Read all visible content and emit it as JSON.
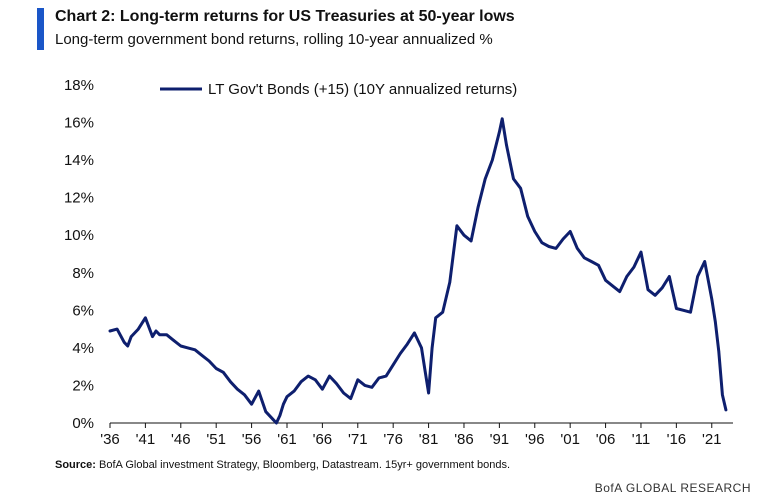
{
  "header": {
    "title": "Chart 2: Long-term returns for US Treasuries at 50-year lows",
    "subtitle": "Long-term government bond returns, rolling 10-year annualized %"
  },
  "footer": {
    "source_label": "Source:",
    "source_text": "BofA Global investment Strategy, Bloomberg, Datastream. 15yr+ government bonds.",
    "brand": "BofA GLOBAL RESEARCH"
  },
  "colors": {
    "accent": "#1a56c8",
    "series": "#0e1f6e",
    "axis": "#111111"
  },
  "chart_data": {
    "type": "line",
    "xlabel": "",
    "ylabel": "",
    "xlim": [
      1936,
      2024
    ],
    "ylim": [
      0,
      18
    ],
    "grid": false,
    "legend_position": "top-center",
    "x_tick_labels": [
      "'36",
      "'41",
      "'46",
      "'51",
      "'56",
      "'61",
      "'66",
      "'71",
      "'76",
      "'81",
      "'86",
      "'91",
      "'96",
      "'01",
      "'06",
      "'11",
      "'16",
      "'21"
    ],
    "x_tick_years": [
      1936,
      1941,
      1946,
      1951,
      1956,
      1961,
      1966,
      1971,
      1976,
      1981,
      1986,
      1991,
      1996,
      2001,
      2006,
      2011,
      2016,
      2021
    ],
    "y_tick_labels": [
      "0%",
      "2%",
      "4%",
      "6%",
      "8%",
      "10%",
      "12%",
      "14%",
      "16%",
      "18%"
    ],
    "y_ticks": [
      0,
      2,
      4,
      6,
      8,
      10,
      12,
      14,
      16,
      18
    ],
    "series": [
      {
        "name": "LT Gov't Bonds (+15) (10Y annualized returns)",
        "x": [
          1936,
          1937,
          1938,
          1938.5,
          1939,
          1940,
          1941,
          1942,
          1942.5,
          1943,
          1944,
          1945,
          1946,
          1947,
          1948,
          1949,
          1950,
          1951,
          1952,
          1953,
          1954,
          1955,
          1956,
          1957,
          1958,
          1959,
          1959.5,
          1960,
          1960.5,
          1961,
          1962,
          1963,
          1964,
          1965,
          1966,
          1967,
          1968,
          1969,
          1970,
          1971,
          1972,
          1973,
          1974,
          1975,
          1976,
          1977,
          1978,
          1979,
          1980,
          1980.5,
          1981,
          1981.5,
          1982,
          1983,
          1984,
          1985,
          1986,
          1987,
          1988,
          1989,
          1990,
          1991,
          1991.4,
          1992,
          1993,
          1994,
          1995,
          1996,
          1997,
          1998,
          1999,
          2000,
          2001,
          2002,
          2003,
          2004,
          2005,
          2006,
          2007,
          2008,
          2009,
          2010,
          2011,
          2012,
          2013,
          2014,
          2015,
          2016,
          2017,
          2018,
          2019,
          2020,
          2021,
          2021.5,
          2022,
          2022.5,
          2023
        ],
        "values": [
          4.9,
          5.0,
          4.3,
          4.1,
          4.6,
          5.0,
          5.6,
          4.6,
          4.9,
          4.7,
          4.7,
          4.4,
          4.1,
          4.0,
          3.9,
          3.6,
          3.3,
          2.9,
          2.7,
          2.2,
          1.8,
          1.5,
          1.0,
          1.7,
          0.6,
          0.2,
          0.0,
          0.4,
          1.0,
          1.4,
          1.7,
          2.2,
          2.5,
          2.3,
          1.8,
          2.5,
          2.1,
          1.6,
          1.3,
          2.3,
          2.0,
          1.9,
          2.4,
          2.5,
          3.1,
          3.7,
          4.2,
          4.8,
          4.0,
          2.8,
          1.6,
          4.0,
          5.6,
          5.9,
          7.5,
          10.5,
          10.0,
          9.7,
          11.5,
          13.0,
          14.0,
          15.5,
          16.2,
          14.8,
          13.0,
          12.5,
          11.0,
          10.2,
          9.6,
          9.4,
          9.3,
          9.8,
          10.2,
          9.3,
          8.8,
          8.6,
          8.4,
          7.6,
          7.3,
          7.0,
          7.8,
          8.3,
          9.1,
          7.1,
          6.8,
          7.2,
          7.8,
          6.1,
          6.0,
          5.9,
          7.8,
          8.6,
          6.6,
          5.4,
          3.8,
          1.5,
          0.7
        ]
      }
    ]
  },
  "legend": {
    "label": "LT Gov't Bonds (+15) (10Y annualized returns)"
  }
}
